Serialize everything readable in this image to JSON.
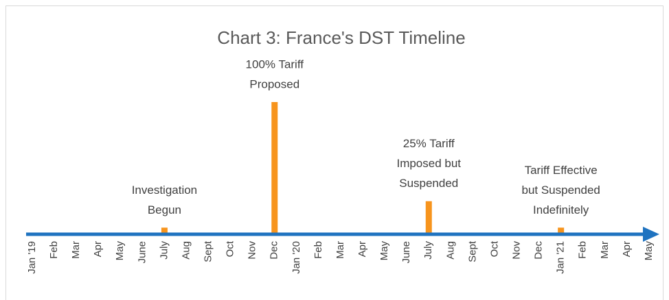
{
  "chart_data": {
    "type": "bar",
    "title": "Chart 3: France's DST Timeline",
    "categories": [
      "Jan '19",
      "Feb",
      "Mar",
      "Apr",
      "May",
      "June",
      "July",
      "Aug",
      "Sept",
      "Oct",
      "Nov",
      "Dec",
      "Jan '20",
      "Feb",
      "Mar",
      "Apr",
      "May",
      "June",
      "July",
      "Aug",
      "Sept",
      "Oct",
      "Nov",
      "Dec",
      "Jan '21",
      "Feb",
      "Mar",
      "Apr",
      "May"
    ],
    "values": [
      null,
      null,
      null,
      null,
      null,
      null,
      5,
      null,
      null,
      null,
      null,
      100,
      null,
      null,
      null,
      null,
      null,
      null,
      25,
      null,
      null,
      null,
      null,
      null,
      5,
      null,
      null,
      null,
      null
    ],
    "annotations": [
      null,
      null,
      null,
      null,
      null,
      null,
      [
        "Investigation",
        "Begun"
      ],
      null,
      null,
      null,
      null,
      [
        "100% Tariff",
        "Proposed"
      ],
      null,
      null,
      null,
      null,
      null,
      null,
      [
        "25% Tariff",
        "Imposed but",
        "Suspended"
      ],
      null,
      null,
      null,
      null,
      null,
      [
        "Tariff Effective",
        "but Suspended",
        "Indefinitely"
      ],
      null,
      null,
      null,
      null
    ],
    "color": "#f7941d",
    "axis_color": "#1f73c0",
    "ylim": [
      0,
      100
    ]
  }
}
